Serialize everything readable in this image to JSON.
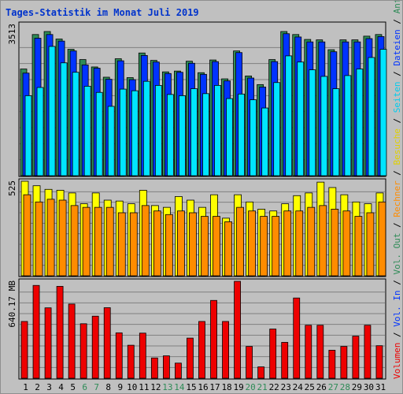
{
  "chart_data": {
    "type": "bar",
    "title": "Tages-Statistik im Monat Juli 2019",
    "days": [
      "1",
      "2",
      "3",
      "4",
      "5",
      "6",
      "7",
      "8",
      "9",
      "10",
      "11",
      "12",
      "13",
      "14",
      "15",
      "16",
      "17",
      "18",
      "19",
      "20",
      "21",
      "22",
      "23",
      "24",
      "25",
      "26",
      "27",
      "28",
      "29",
      "30",
      "31"
    ],
    "weekend_days": [
      "6",
      "7",
      "13",
      "14",
      "20",
      "21",
      "27",
      "28"
    ],
    "colors": {
      "day_label": "#000000",
      "weekend_label": "#2e8b57",
      "plot_bg": "#c0c0c0",
      "grid": "#808080"
    },
    "panels": [
      {
        "id": "hits",
        "ymax_label": "3513",
        "ymax": 3513,
        "series": [
          {
            "name": "Anfragen",
            "color": "#2e8b57",
            "values": [
              2600,
              3440,
              3513,
              3330,
              3080,
              2830,
              2650,
              2400,
              2850,
              2390,
              2990,
              2810,
              2530,
              2550,
              2790,
              2510,
              2820,
              2360,
              3040,
              2430,
              2220,
              2830,
              3513,
              3440,
              3320,
              3310,
              3070,
              3310,
              3310,
              3400,
              3440
            ]
          },
          {
            "name": "Dateien",
            "color": "#0033ff",
            "values": [
              2500,
              3350,
              3440,
              3280,
              3040,
              2700,
              2620,
              2350,
              2800,
              2340,
              2930,
              2770,
              2490,
              2520,
              2740,
              2470,
              2780,
              2310,
              3000,
              2380,
              2160,
              2780,
              3460,
              3380,
              3260,
              3260,
              3020,
              3260,
              3260,
              3340,
              3390
            ]
          },
          {
            "name": "Seiten",
            "color": "#00e5ff",
            "values": [
              1950,
              2150,
              3150,
              2750,
              2520,
              2180,
              2030,
              1690,
              2110,
              2070,
              2300,
              2200,
              1980,
              1950,
              2120,
              2000,
              2200,
              1880,
              1990,
              1850,
              1650,
              2270,
              2920,
              2770,
              2580,
              2420,
              2120,
              2440,
              2600,
              2880,
              3080
            ]
          }
        ]
      },
      {
        "id": "visits",
        "ymax_label": "525",
        "ymax": 525,
        "series": [
          {
            "name": "Besuche",
            "color": "#ffff00",
            "values": [
              525,
              500,
              480,
              475,
              460,
              400,
              460,
              420,
              415,
              400,
              475,
              390,
              380,
              440,
              420,
              380,
              450,
              320,
              450,
              410,
              370,
              360,
              400,
              445,
              460,
              520,
              490,
              450,
              410,
              400,
              460
            ]
          },
          {
            "name": "Rechner",
            "color": "#ff8c00",
            "values": [
              450,
              410,
              425,
              420,
              390,
              380,
              380,
              380,
              350,
              350,
              390,
              360,
              340,
              360,
              350,
              330,
              330,
              300,
              380,
              360,
              330,
              330,
              360,
              360,
              380,
              390,
              370,
              360,
              330,
              350,
              410
            ]
          }
        ]
      },
      {
        "id": "volume",
        "ymax_label": "640.17 MB",
        "ymax": 640.17,
        "series": [
          {
            "name": "Volumen",
            "color": "#ee0000",
            "values": [
              375,
              613,
              465,
              607,
              490,
              360,
              410,
              466,
              300,
              218,
              298,
              134,
              148,
              100,
              265,
              375,
              514,
              375,
              640.17,
              210,
              75,
              325,
              237,
              530,
              350,
              350,
              185,
              210,
              278,
              350,
              215
            ]
          }
        ]
      }
    ],
    "legend": [
      {
        "text": "Volumen",
        "color": "#ee0000"
      },
      {
        "text": " / ",
        "color": "#000000"
      },
      {
        "text": "Vol. In",
        "color": "#0033ff"
      },
      {
        "text": " / ",
        "color": "#000000"
      },
      {
        "text": "Vol. Out",
        "color": "#2e8b57"
      },
      {
        "text": " / ",
        "color": "#000000"
      },
      {
        "text": "Rechner",
        "color": "#ff8c00"
      },
      {
        "text": " / ",
        "color": "#000000"
      },
      {
        "text": "Besuche",
        "color": "#e0d000"
      },
      {
        "text": " / ",
        "color": "#000000"
      },
      {
        "text": "Seiten",
        "color": "#00ccee"
      },
      {
        "text": " / ",
        "color": "#000000"
      },
      {
        "text": "Dateien",
        "color": "#0033ff"
      },
      {
        "text": " / ",
        "color": "#000000"
      },
      {
        "text": "Anfragen",
        "color": "#2e8b57"
      }
    ]
  }
}
